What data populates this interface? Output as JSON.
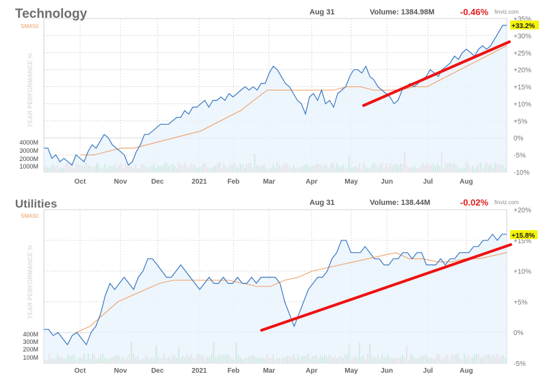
{
  "colors": {
    "title": "#6e6e6e",
    "header_text": "#555555",
    "negative": "#e02020",
    "sma": "#f0a066",
    "price_line": "#3a78c0",
    "price_fill": "#e8f2fc",
    "trend": "#ee1111",
    "vol_up": "#7fd27f",
    "vol_down": "#f0a3a3",
    "grid": "#d8d8d8",
    "axis_text": "#777777",
    "badge_bg": "#f5f500"
  },
  "chart_data": [
    {
      "type": "line",
      "title": "Technology",
      "date": "Aug 31",
      "volume_label": "Volume: 1384.98M",
      "change": "-0.46%",
      "brand": "finviz.com",
      "sma_label": "SMA50",
      "ylabel": "YEAR PERFORMANCE %",
      "ylim": [
        -10,
        35
      ],
      "y_ticks": [
        "+35%",
        "+30%",
        "+25%",
        "+20%",
        "+15%",
        "+10%",
        "+5%",
        "0%",
        "-5%",
        "-10%"
      ],
      "x_ticks": [
        "Oct",
        "Nov",
        "Dec",
        "2021",
        "Feb",
        "Mar",
        "Apr",
        "May",
        "Jun",
        "Jul",
        "Aug"
      ],
      "volume_ticks": [
        "4000M",
        "3000M",
        "2000M",
        "1000M"
      ],
      "last_value": "+33.2%",
      "series": [
        {
          "values": [
            -3,
            -3,
            -6,
            -5,
            -7,
            -6,
            -7,
            -8,
            -5,
            -6,
            -7,
            -4,
            -2,
            -3,
            -1,
            1,
            0,
            -2,
            -3,
            -4,
            -5,
            -8,
            -7,
            -4,
            -2,
            1,
            1,
            2,
            3,
            4,
            4,
            4,
            5,
            6,
            6,
            8,
            7,
            9,
            9,
            10,
            11,
            9,
            11,
            11,
            12,
            11,
            13,
            12,
            13,
            14,
            15,
            14,
            15,
            14,
            16,
            16,
            19,
            21,
            20,
            18,
            16,
            15,
            13,
            11,
            10,
            7,
            12,
            13,
            11,
            14,
            10,
            11,
            9,
            13,
            14,
            15,
            18,
            20,
            20,
            19,
            21,
            18,
            17,
            15,
            14,
            13,
            12,
            10,
            11,
            14,
            15,
            16,
            15,
            16,
            17,
            18,
            20,
            19,
            18,
            20,
            21,
            22,
            24,
            23,
            25,
            26,
            25,
            24,
            26,
            27,
            26,
            27,
            29,
            31,
            33,
            33
          ]
        },
        {
          "name": "SMA50",
          "values": [
            -5,
            -5,
            -4,
            -3,
            -3,
            -2,
            -1,
            0,
            1,
            2,
            4,
            6,
            8,
            11,
            14,
            14,
            14,
            14,
            14,
            14,
            15,
            15,
            14,
            14,
            14,
            15,
            15,
            17,
            19,
            21,
            23,
            25,
            27
          ]
        }
      ]
    },
    {
      "type": "line",
      "title": "Utilities",
      "date": "Aug 31",
      "volume_label": "Volume: 138.44M",
      "change": "-0.02%",
      "brand": "finviz.com",
      "sma_label": "SMA50",
      "ylabel": "YEAR PERFORMANCE %",
      "ylim": [
        -5,
        20
      ],
      "y_ticks": [
        "+20%",
        "+15%",
        "+10%",
        "+5%",
        "0%",
        "-5%"
      ],
      "x_ticks": [
        "Oct",
        "Nov",
        "Dec",
        "2021",
        "Feb",
        "Mar",
        "Apr",
        "May",
        "Jun",
        "Jul",
        "Aug"
      ],
      "volume_ticks": [
        "400M",
        "300M",
        "200M",
        "100M"
      ],
      "last_value": "+15.8%",
      "series": [
        {
          "values": [
            0.5,
            0.5,
            -0.5,
            0,
            -1,
            -2,
            -0.5,
            0,
            -1,
            -2,
            0,
            1,
            3,
            6,
            8,
            7,
            8,
            9,
            8,
            7,
            9,
            10,
            12,
            12,
            11,
            10,
            9,
            9,
            10,
            11,
            10,
            9,
            8,
            7,
            8,
            9,
            8,
            8,
            9,
            8,
            8,
            9,
            8,
            8,
            9,
            8,
            9,
            9,
            9,
            9,
            8,
            5,
            3,
            1,
            3,
            5,
            7,
            8,
            9,
            9,
            10,
            12,
            13,
            15,
            15,
            13,
            13,
            13,
            14,
            13,
            12,
            12,
            11,
            11,
            12,
            12,
            13,
            13,
            12,
            13,
            13,
            11,
            11,
            11,
            12,
            11,
            12,
            12,
            13,
            13,
            13,
            14,
            14,
            15,
            15,
            16,
            15,
            16,
            16
          ]
        },
        {
          "name": "SMA50",
          "values": [
            0,
            1,
            3,
            5,
            6,
            7,
            8,
            8.5,
            8.5,
            8.5,
            8.5,
            8.5,
            8,
            7.5,
            7.5,
            8.5,
            9,
            10,
            10.5,
            11,
            11.5,
            12,
            12.5,
            13,
            12,
            12,
            11.5,
            11.5,
            12,
            12,
            12.5,
            13
          ]
        }
      ]
    }
  ]
}
